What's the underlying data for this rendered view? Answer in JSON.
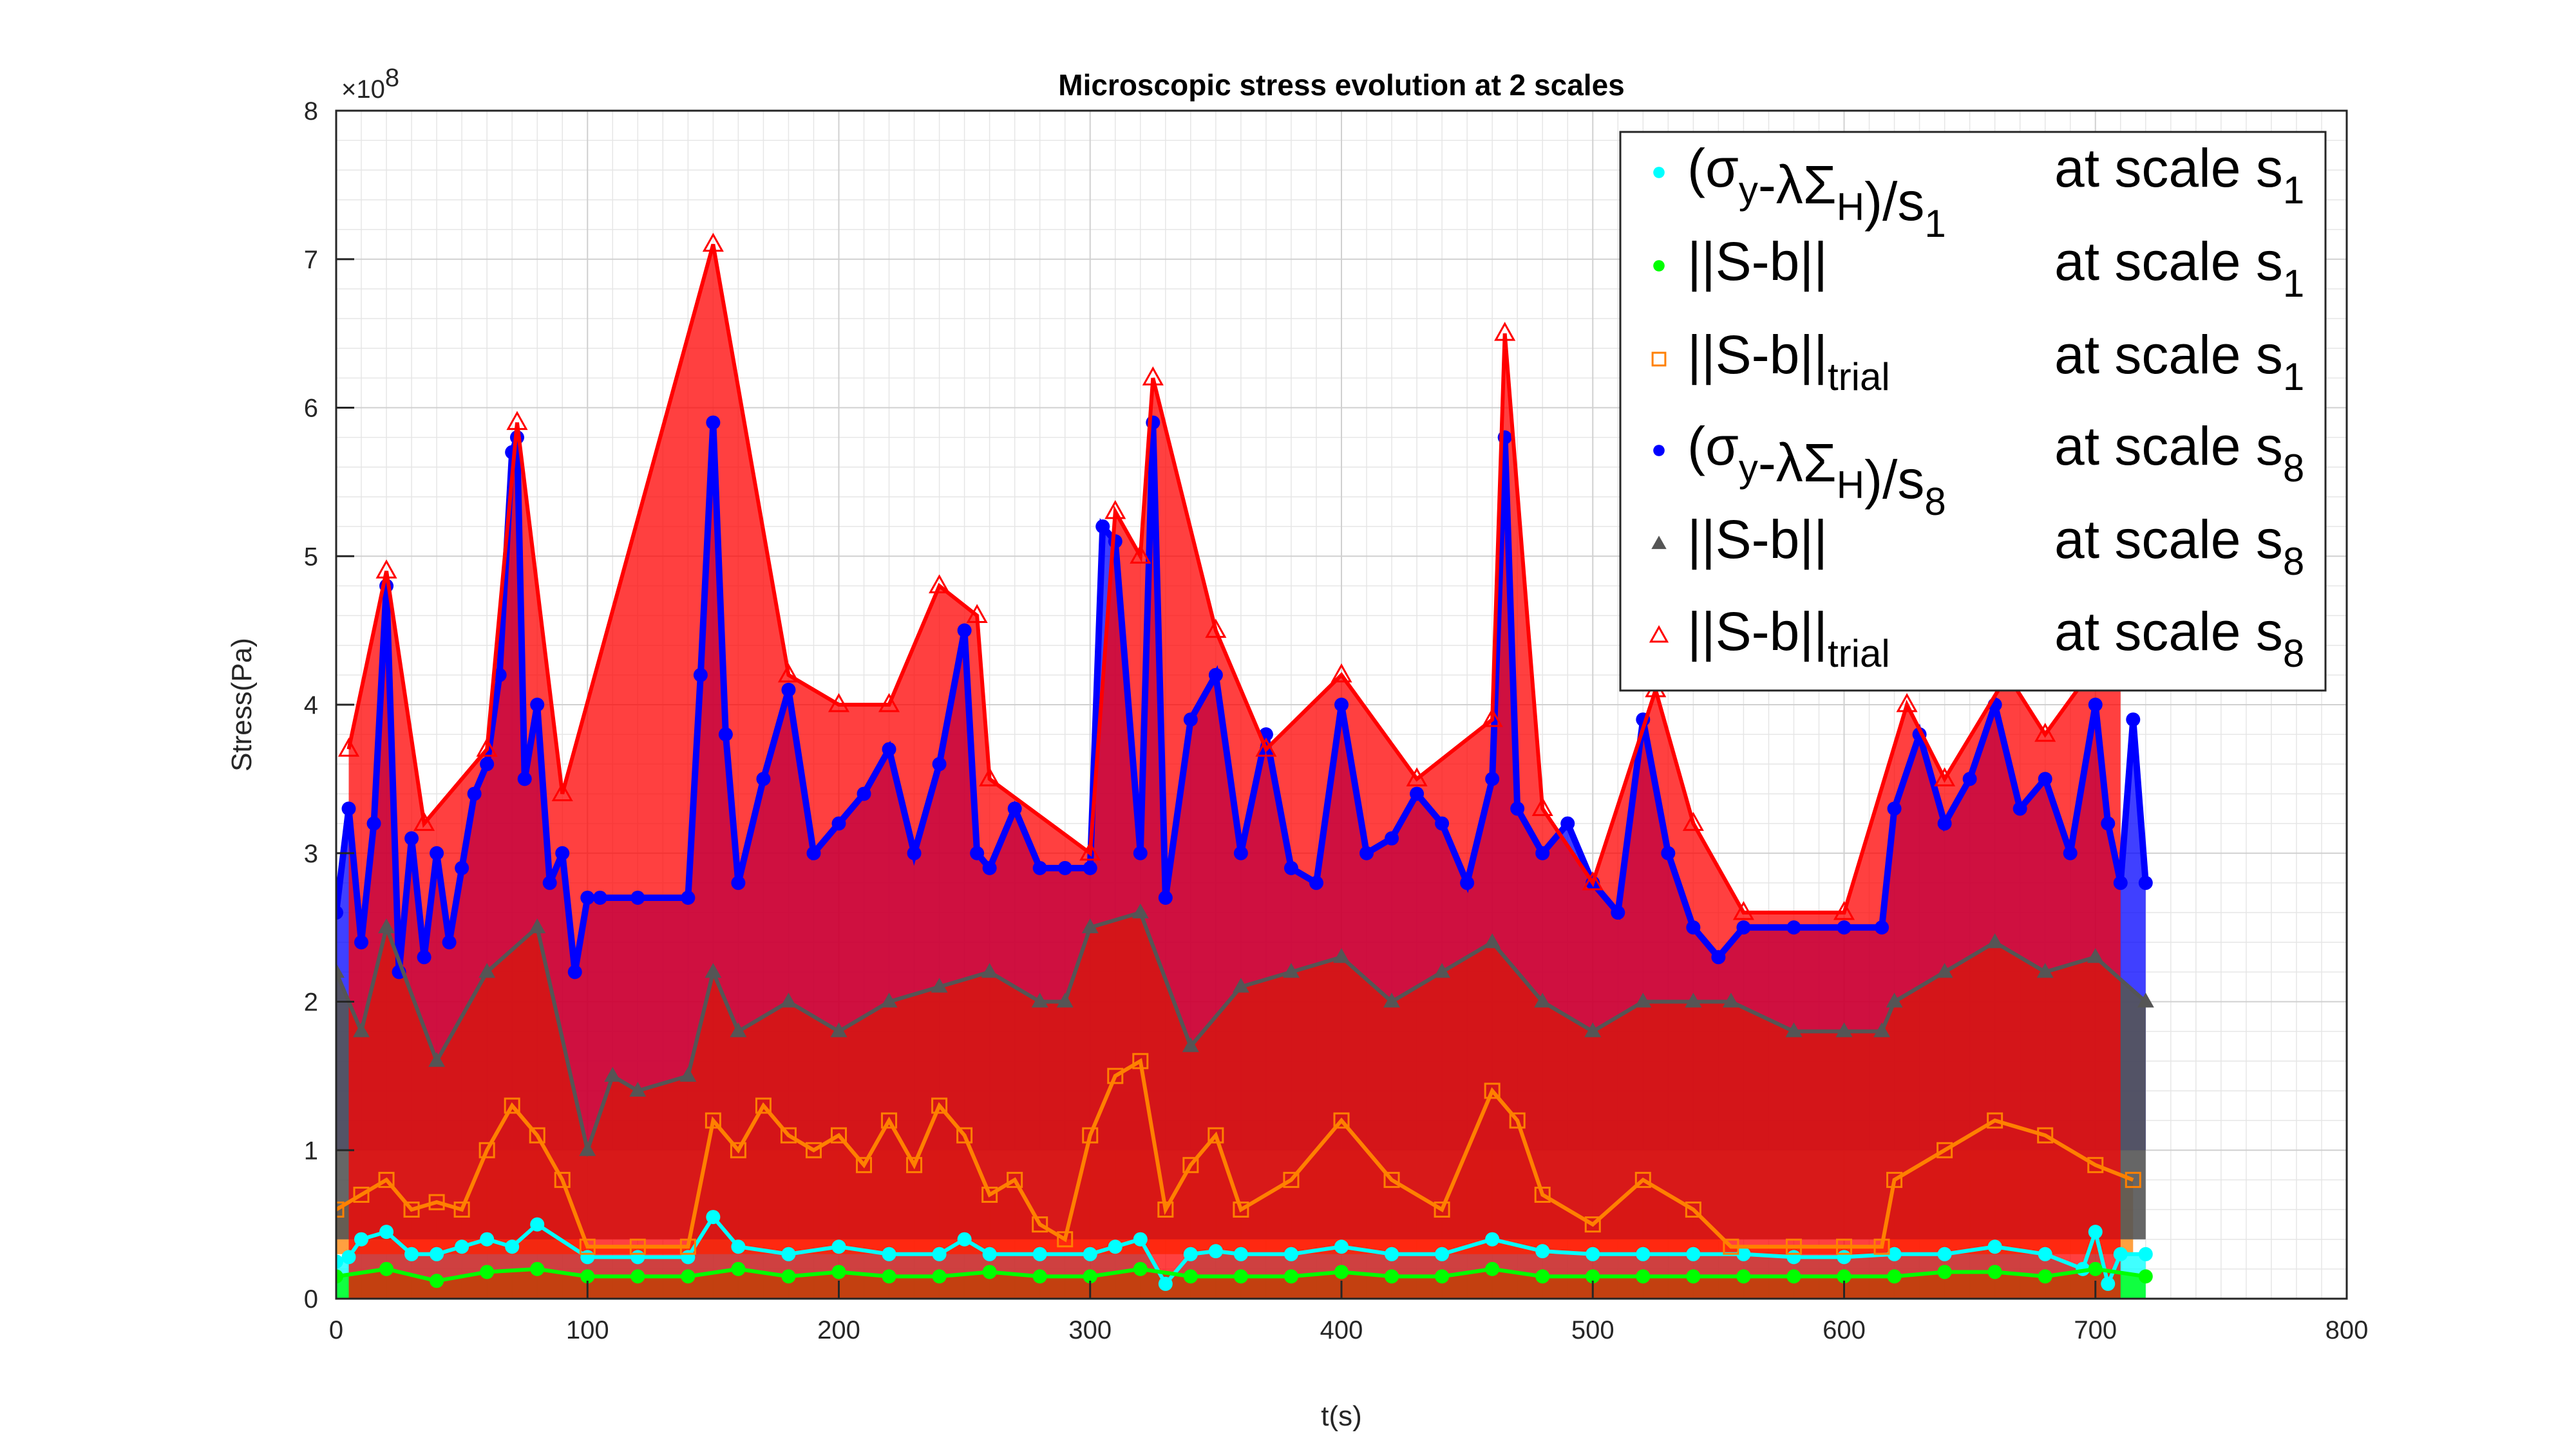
{
  "chart_data": {
    "type": "scatter",
    "title": "Microscopic stress evolution at 2 scales",
    "xlabel": "t(s)",
    "ylabel": "Stress(Pa)",
    "xlim": [
      0,
      800
    ],
    "ylim": [
      0,
      8
    ],
    "y_exponent": "×10",
    "y_exponent_power": "8",
    "x_ticks": [
      "0",
      "100",
      "200",
      "300",
      "400",
      "500",
      "600",
      "700",
      "800"
    ],
    "y_ticks": [
      "0",
      "1",
      "2",
      "3",
      "4",
      "5",
      "6",
      "7",
      "8"
    ],
    "grid": "on (major and minor)",
    "legend_location": "top-right",
    "series": [
      {
        "name": "(σy-λΣH)/s1 at scale s1",
        "legend": {
          "main": "(σ",
          "sub1": "y",
          "mid": "-λΣ",
          "sub2": "H",
          "tail": ")/s",
          "sub3": "1",
          "scale": "at scale s",
          "scale_sub": "1"
        },
        "marker": "point",
        "color": "#00FFFF",
        "x": [
          0,
          5,
          10,
          20,
          30,
          40,
          50,
          60,
          70,
          80,
          100,
          120,
          140,
          150,
          160,
          180,
          200,
          220,
          240,
          250,
          260,
          280,
          300,
          310,
          320,
          330,
          340,
          350,
          360,
          380,
          400,
          420,
          440,
          460,
          480,
          500,
          520,
          540,
          560,
          580,
          600,
          620,
          640,
          660,
          680,
          695,
          700,
          705,
          710,
          720
        ],
        "values": [
          0.25,
          0.28,
          0.4,
          0.45,
          0.3,
          0.3,
          0.35,
          0.4,
          0.35,
          0.5,
          0.28,
          0.28,
          0.28,
          0.55,
          0.35,
          0.3,
          0.35,
          0.3,
          0.3,
          0.4,
          0.3,
          0.3,
          0.3,
          0.35,
          0.4,
          0.1,
          0.3,
          0.32,
          0.3,
          0.3,
          0.35,
          0.3,
          0.3,
          0.4,
          0.32,
          0.3,
          0.3,
          0.3,
          0.3,
          0.28,
          0.28,
          0.3,
          0.3,
          0.35,
          0.3,
          0.2,
          0.45,
          0.1,
          0.3,
          0.3
        ]
      },
      {
        "name": "||S-b|| at scale s1",
        "legend": {
          "main": "||S-b||",
          "scale": "at scale s",
          "scale_sub": "1"
        },
        "marker": "point",
        "color": "#00FF00",
        "x": [
          0,
          20,
          40,
          60,
          80,
          100,
          120,
          140,
          160,
          180,
          200,
          220,
          240,
          260,
          280,
          300,
          320,
          340,
          360,
          380,
          400,
          420,
          440,
          460,
          480,
          500,
          520,
          540,
          560,
          580,
          600,
          620,
          640,
          660,
          680,
          700,
          720
        ],
        "values": [
          0.15,
          0.2,
          0.12,
          0.18,
          0.2,
          0.15,
          0.15,
          0.15,
          0.2,
          0.15,
          0.18,
          0.15,
          0.15,
          0.18,
          0.15,
          0.15,
          0.2,
          0.15,
          0.15,
          0.15,
          0.18,
          0.15,
          0.15,
          0.2,
          0.15,
          0.15,
          0.15,
          0.15,
          0.15,
          0.15,
          0.15,
          0.15,
          0.18,
          0.18,
          0.15,
          0.2,
          0.15
        ]
      },
      {
        "name": "||S-b||trial at scale s1",
        "legend": {
          "main": "||S-b||",
          "sub1": "trial",
          "scale": "at scale s",
          "scale_sub": "1"
        },
        "marker": "square",
        "color": "#FF8000",
        "x": [
          0,
          10,
          20,
          30,
          40,
          50,
          60,
          70,
          80,
          90,
          100,
          120,
          140,
          150,
          160,
          170,
          180,
          190,
          200,
          210,
          220,
          230,
          240,
          250,
          260,
          270,
          280,
          290,
          300,
          310,
          320,
          330,
          340,
          350,
          360,
          380,
          400,
          420,
          440,
          460,
          470,
          480,
          500,
          520,
          540,
          555,
          580,
          600,
          615,
          620,
          640,
          660,
          680,
          700,
          715
        ],
        "values": [
          0.6,
          0.7,
          0.8,
          0.6,
          0.65,
          0.6,
          1.0,
          1.3,
          1.1,
          0.8,
          0.35,
          0.35,
          0.35,
          1.2,
          1.0,
          1.3,
          1.1,
          1.0,
          1.1,
          0.9,
          1.2,
          0.9,
          1.3,
          1.1,
          0.7,
          0.8,
          0.5,
          0.4,
          1.1,
          1.5,
          1.6,
          0.6,
          0.9,
          1.1,
          0.6,
          0.8,
          1.2,
          0.8,
          0.6,
          1.4,
          1.2,
          0.7,
          0.5,
          0.8,
          0.6,
          0.35,
          0.35,
          0.35,
          0.35,
          0.8,
          1.0,
          1.2,
          1.1,
          0.9,
          0.8
        ]
      },
      {
        "name": "(σy-λΣH)/s8 at scale s8",
        "legend": {
          "main": "(σ",
          "sub1": "y",
          "mid": "-λΣ",
          "sub2": "H",
          "tail": ")/s",
          "sub3": "8",
          "scale": "at scale s",
          "scale_sub": "8"
        },
        "marker": "point",
        "color": "#0000FF",
        "x": [
          0,
          5,
          10,
          15,
          20,
          25,
          30,
          35,
          40,
          45,
          50,
          55,
          60,
          65,
          70,
          72,
          75,
          80,
          85,
          90,
          95,
          100,
          105,
          120,
          140,
          145,
          150,
          155,
          160,
          170,
          180,
          190,
          200,
          210,
          220,
          230,
          240,
          250,
          255,
          260,
          270,
          280,
          290,
          300,
          305,
          310,
          320,
          325,
          330,
          340,
          350,
          360,
          370,
          380,
          390,
          400,
          410,
          420,
          430,
          440,
          450,
          460,
          465,
          470,
          480,
          490,
          500,
          510,
          520,
          530,
          540,
          550,
          560,
          580,
          600,
          615,
          620,
          630,
          640,
          650,
          660,
          670,
          680,
          690,
          700,
          705,
          710,
          715,
          720
        ],
        "values": [
          2.6,
          3.3,
          2.4,
          3.2,
          4.8,
          2.2,
          3.1,
          2.3,
          3.0,
          2.4,
          2.9,
          3.4,
          3.6,
          4.2,
          5.7,
          5.8,
          3.5,
          4.0,
          2.8,
          3.0,
          2.2,
          2.7,
          2.7,
          2.7,
          2.7,
          4.2,
          5.9,
          3.8,
          2.8,
          3.5,
          4.1,
          3.0,
          3.2,
          3.4,
          3.7,
          3.0,
          3.6,
          4.5,
          3.0,
          2.9,
          3.3,
          2.9,
          2.9,
          2.9,
          5.2,
          5.1,
          3.0,
          5.9,
          2.7,
          3.9,
          4.2,
          3.0,
          3.8,
          2.9,
          2.8,
          4.0,
          3.0,
          3.1,
          3.4,
          3.2,
          2.8,
          3.5,
          5.8,
          3.3,
          3.0,
          3.2,
          2.8,
          2.6,
          3.9,
          3.0,
          2.5,
          2.3,
          2.5,
          2.5,
          2.5,
          2.5,
          3.3,
          3.8,
          3.2,
          3.5,
          4.0,
          3.3,
          3.5,
          3.0,
          4.0,
          3.2,
          2.8,
          3.9,
          2.8
        ]
      },
      {
        "name": "||S-b|| at scale s8",
        "legend": {
          "main": "||S-b||",
          "scale": "at scale s",
          "scale_sub": "8"
        },
        "marker": "triangle-filled",
        "color": "#555555",
        "x": [
          0,
          10,
          20,
          40,
          60,
          80,
          100,
          110,
          120,
          140,
          150,
          160,
          180,
          200,
          220,
          240,
          260,
          280,
          290,
          300,
          320,
          340,
          360,
          380,
          400,
          420,
          440,
          460,
          480,
          500,
          520,
          540,
          555,
          580,
          600,
          615,
          620,
          640,
          660,
          680,
          700,
          720
        ],
        "values": [
          2.2,
          1.8,
          2.5,
          1.6,
          2.2,
          2.5,
          1.0,
          1.5,
          1.4,
          1.5,
          2.2,
          1.8,
          2.0,
          1.8,
          2.0,
          2.1,
          2.2,
          2.0,
          2.0,
          2.5,
          2.6,
          1.7,
          2.1,
          2.2,
          2.3,
          2.0,
          2.2,
          2.4,
          2.0,
          1.8,
          2.0,
          2.0,
          2.0,
          1.8,
          1.8,
          1.8,
          2.0,
          2.2,
          2.4,
          2.2,
          2.3,
          2.0
        ]
      },
      {
        "name": "||S-b||trial at scale s8",
        "legend": {
          "main": "||S-b||",
          "sub1": "trial",
          "scale": "at scale s",
          "scale_sub": "8"
        },
        "marker": "triangle",
        "color": "#FF0000",
        "x": [
          5,
          20,
          35,
          60,
          72,
          90,
          150,
          180,
          200,
          220,
          240,
          255,
          260,
          300,
          310,
          320,
          325,
          350,
          370,
          400,
          430,
          460,
          465,
          480,
          500,
          525,
          540,
          560,
          600,
          625,
          640,
          665,
          680,
          710
        ],
        "values": [
          3.7,
          4.9,
          3.2,
          3.7,
          5.9,
          3.4,
          7.1,
          4.2,
          4.0,
          4.0,
          4.8,
          4.6,
          3.5,
          3.0,
          5.3,
          5.0,
          6.2,
          4.5,
          3.7,
          4.2,
          3.5,
          3.9,
          6.5,
          3.3,
          2.8,
          4.1,
          3.2,
          2.6,
          2.6,
          4.0,
          3.5,
          4.2,
          3.8,
          4.5
        ]
      }
    ]
  }
}
